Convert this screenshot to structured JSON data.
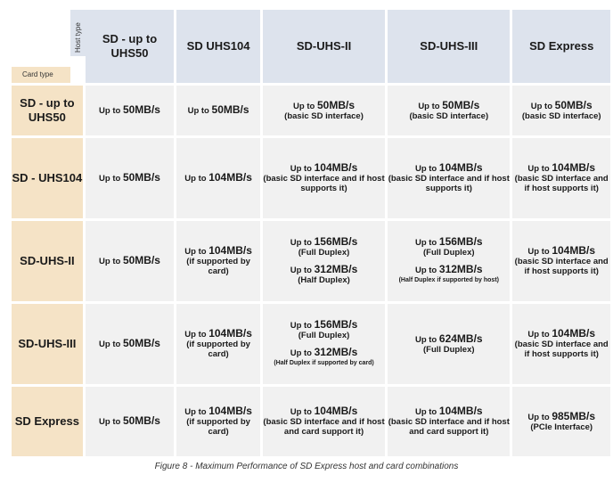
{
  "host_type_label": "Host type",
  "card_type_label": "Card type",
  "columns": [
    "SD - up to UHS50",
    "SD UHS104",
    "SD-UHS-II",
    "SD-UHS-III",
    "SD Express"
  ],
  "rows": [
    {
      "card": "SD - up to UHS50",
      "cells": [
        [
          {
            "pre": "Up to ",
            "val": "50MB/s",
            "note": ""
          }
        ],
        [
          {
            "pre": "Up to ",
            "val": "50MB/s",
            "note": ""
          }
        ],
        [
          {
            "pre": "Up to ",
            "val": "50MB/s",
            "note": "(basic SD interface)"
          }
        ],
        [
          {
            "pre": "Up to ",
            "val": "50MB/s",
            "note": "(basic SD interface)"
          }
        ],
        [
          {
            "pre": "Up to ",
            "val": "50MB/s",
            "note": "(basic SD interface)"
          }
        ]
      ]
    },
    {
      "card": "SD - UHS104",
      "cells": [
        [
          {
            "pre": "Up to ",
            "val": "50MB/s",
            "note": ""
          }
        ],
        [
          {
            "pre": "Up to ",
            "val": "104MB/s",
            "note": ""
          }
        ],
        [
          {
            "pre": "Up to ",
            "val": "104MB/s",
            "note": "(basic SD interface and if host supports it)"
          }
        ],
        [
          {
            "pre": "Up to ",
            "val": "104MB/s",
            "note": "(basic SD interface and if host supports it)"
          }
        ],
        [
          {
            "pre": "Up to ",
            "val": "104MB/s",
            "note": "(basic SD interface and if host supports it)"
          }
        ]
      ]
    },
    {
      "card": "SD-UHS-II",
      "cells": [
        [
          {
            "pre": "Up to ",
            "val": "50MB/s",
            "note": ""
          }
        ],
        [
          {
            "pre": "Up to ",
            "val": "104MB/s",
            "note": "(if supported by card)"
          }
        ],
        [
          {
            "pre": "Up to ",
            "val": "156MB/s",
            "note": "(Full Duplex)"
          },
          {
            "pre": "Up to ",
            "val": "312MB/s",
            "note": "(Half Duplex)"
          }
        ],
        [
          {
            "pre": "Up to ",
            "val": "156MB/s",
            "note": "(Full Duplex)"
          },
          {
            "pre": "Up to ",
            "val": "312MB/s",
            "note": "(Half Duplex if supported by host)"
          }
        ],
        [
          {
            "pre": "Up to ",
            "val": "104MB/s",
            "note": "(basic SD interface and if host supports it)"
          }
        ]
      ]
    },
    {
      "card": "SD-UHS-III",
      "cells": [
        [
          {
            "pre": "Up to ",
            "val": "50MB/s",
            "note": ""
          }
        ],
        [
          {
            "pre": "Up to ",
            "val": "104MB/s",
            "note": "(if supported by card)"
          }
        ],
        [
          {
            "pre": "Up to ",
            "val": "156MB/s",
            "note": "(Full Duplex)"
          },
          {
            "pre": "Up to ",
            "val": "312MB/s",
            "note": "(Half Duplex if supported by card)"
          }
        ],
        [
          {
            "pre": "Up to ",
            "val": "624MB/s",
            "note": "(Full Duplex)"
          }
        ],
        [
          {
            "pre": "Up to ",
            "val": "104MB/s",
            "note": "(basic SD interface and if host supports it)"
          }
        ]
      ]
    },
    {
      "card": "SD Express",
      "cells": [
        [
          {
            "pre": "Up to ",
            "val": "50MB/s",
            "note": ""
          }
        ],
        [
          {
            "pre": "Up to ",
            "val": "104MB/s",
            "note": "(if supported by card)"
          }
        ],
        [
          {
            "pre": "Up to ",
            "val": "104MB/s",
            "note": "(basic SD interface and if host and card support it)"
          }
        ],
        [
          {
            "pre": "Up to ",
            "val": "104MB/s",
            "note": "(basic SD interface and if host and card support it)"
          }
        ],
        [
          {
            "pre": "Up to ",
            "val": "985MB/s",
            "note": "(PCIe Interface)"
          }
        ]
      ]
    }
  ],
  "caption": "Figure 8 - Maximum Performance of SD Express host and card combinations"
}
